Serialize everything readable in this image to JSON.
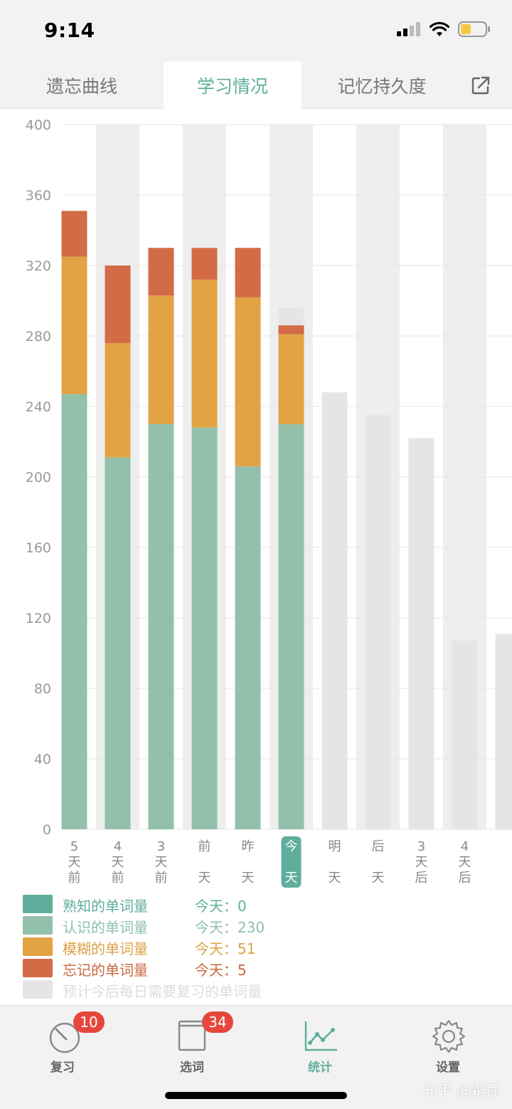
{
  "status_bar": {
    "time": "9:14"
  },
  "tabs": [
    {
      "label": "遗忘曲线"
    },
    {
      "label": "学习情况"
    },
    {
      "label": "记忆持久度"
    }
  ],
  "chart_data": {
    "type": "bar",
    "stacked": true,
    "ylim": [
      0,
      400
    ],
    "yticks": [
      0,
      40,
      80,
      120,
      160,
      200,
      240,
      280,
      320,
      360,
      400
    ],
    "categories": [
      "5天前",
      "4天前",
      "3天前",
      "前天",
      "昨天",
      "今天",
      "明天",
      "后天",
      "3天后",
      "4天后"
    ],
    "highlighted_category": "今天",
    "series": [
      {
        "name": "熟知的单词量",
        "color": "#5fae9c",
        "values": [
          0,
          0,
          0,
          0,
          0,
          0,
          0,
          0,
          0,
          0
        ]
      },
      {
        "name": "认识的单词量",
        "color": "#93c0aa",
        "values": [
          247,
          211,
          230,
          228,
          206,
          230,
          0,
          0,
          0,
          0
        ]
      },
      {
        "name": "模糊的单词量",
        "color": "#e1a343",
        "values": [
          78,
          65,
          73,
          84,
          96,
          51,
          0,
          0,
          0,
          0
        ]
      },
      {
        "name": "忘记的单词量",
        "color": "#d36b47",
        "values": [
          26,
          44,
          27,
          18,
          28,
          5,
          0,
          0,
          0,
          0
        ]
      }
    ],
    "forecast": {
      "name": "预计今后每日需要复习的单词量",
      "color": "#e5e5e5",
      "values": [
        null,
        null,
        null,
        null,
        null,
        296,
        248,
        235,
        222,
        107
      ],
      "next_partial_value": 111
    },
    "grid": true,
    "alternate_column_shading": true
  },
  "legend": [
    {
      "label": "熟知的单词量",
      "today": "今天：0",
      "color": "#5fae9c",
      "text_color": "#5fae9c"
    },
    {
      "label": "认识的单词量",
      "today": "今天：230",
      "color": "#93c0aa",
      "text_color": "#8fbfa8"
    },
    {
      "label": "模糊的单词量",
      "today": "今天：51",
      "color": "#e1a343",
      "text_color": "#dba244"
    },
    {
      "label": "忘记的单词量",
      "today": "今天：5",
      "color": "#d36b47",
      "text_color": "#c9673f"
    },
    {
      "label": "预计今后每日需要复习的单词量",
      "today": "",
      "color": "#e5e5e5",
      "text_color": "#dcdcdc"
    }
  ],
  "bottom_nav": [
    {
      "label": "复习",
      "badge": "10",
      "icon": "review-gauge-icon"
    },
    {
      "label": "选词",
      "badge": "34",
      "icon": "word-book-icon"
    },
    {
      "label": "统计",
      "badge": "",
      "icon": "stats-chart-icon"
    },
    {
      "label": "设置",
      "badge": "",
      "icon": "gear-icon"
    }
  ],
  "watermark": "知乎 @霜舞"
}
